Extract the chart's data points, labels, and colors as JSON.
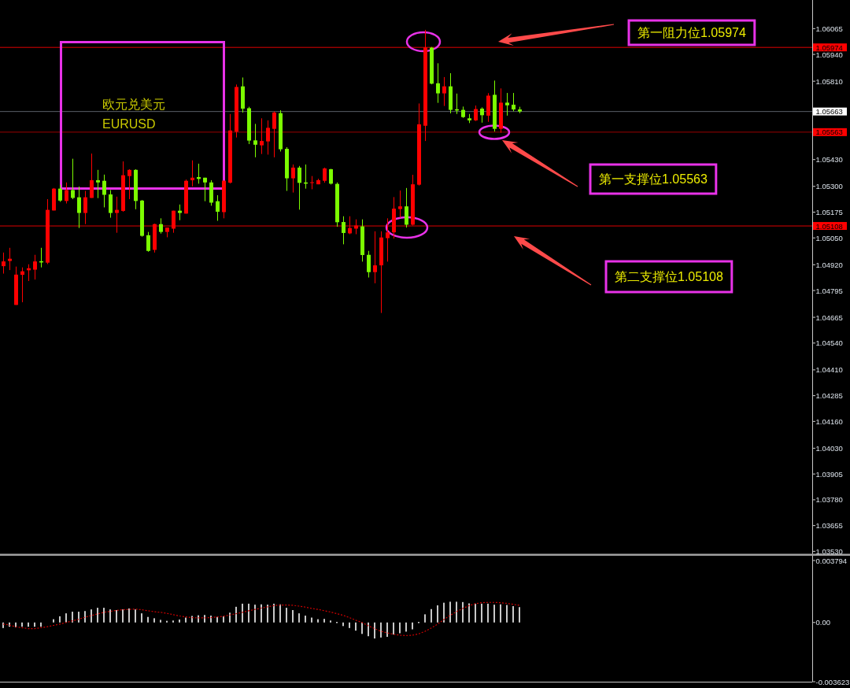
{
  "chart_data": [
    {
      "type": "candlestick",
      "title": "欧元兑美元",
      "subtitle": "EURUSD",
      "categories": [
        null,
        null,
        null,
        null,
        null,
        null,
        null,
        null,
        null,
        null,
        null,
        null,
        null,
        null,
        null,
        null,
        null,
        null,
        null,
        null,
        null,
        null,
        null,
        null,
        null,
        null,
        null,
        null,
        null,
        null,
        null,
        null,
        null,
        null,
        null,
        null,
        null,
        null,
        null,
        null,
        null,
        null,
        null,
        null,
        null,
        null,
        null,
        null,
        null,
        null,
        null,
        null,
        null,
        null,
        null,
        null,
        null,
        null,
        null,
        null,
        null,
        null,
        null,
        null,
        null,
        null,
        null,
        null,
        null,
        null,
        null,
        null,
        null,
        null,
        null,
        null,
        null,
        null,
        null,
        null,
        null,
        null,
        null,
        null,
        null,
        null,
        null,
        null,
        null,
        null,
        null,
        null,
        null,
        null,
        null,
        null,
        null,
        null,
        null,
        null,
        null,
        null,
        null,
        null,
        null,
        null,
        null,
        null,
        null,
        null,
        null,
        null,
        null,
        null,
        null,
        null,
        null,
        null,
        null,
        null,
        null,
        null,
        null,
        null,
        null,
        null,
        null,
        null,
        null
      ],
      "ohlc": [
        [
          1.04913,
          1.04979,
          1.04877,
          1.04936
        ],
        [
          1.04938,
          1.05002,
          1.04894,
          1.04949
        ],
        [
          1.04725,
          1.04911,
          1.04725,
          1.04872
        ],
        [
          1.04871,
          1.04907,
          1.04738,
          1.04888
        ],
        [
          1.04893,
          1.04922,
          1.04841,
          1.04903
        ],
        [
          1.04896,
          1.04968,
          1.04848,
          1.04936
        ],
        [
          1.04937,
          1.05002,
          1.04907,
          1.04931
        ],
        [
          1.0493,
          1.05238,
          1.04923,
          1.05186
        ],
        [
          1.05183,
          1.05292,
          1.05183,
          1.05289
        ],
        [
          1.05289,
          1.05308,
          1.05225,
          1.05231
        ],
        [
          1.05229,
          1.05319,
          1.05217,
          1.05282
        ],
        [
          1.05282,
          1.05434,
          1.05238,
          1.05244
        ],
        [
          1.05247,
          1.05299,
          1.05098,
          1.05171
        ],
        [
          1.05171,
          1.05278,
          1.05117,
          1.05247
        ],
        [
          1.05244,
          1.05459,
          1.05244,
          1.0533
        ],
        [
          1.0533,
          1.0538,
          1.05243,
          1.05319
        ],
        [
          1.05327,
          1.05357,
          1.05198,
          1.05259
        ],
        [
          1.05261,
          1.05282,
          1.05148,
          1.05171
        ],
        [
          1.05171,
          1.0525,
          1.05075,
          1.05186
        ],
        [
          1.05181,
          1.05421,
          1.05177,
          1.05354
        ],
        [
          1.0535,
          1.05383,
          1.05238,
          1.0538
        ],
        [
          1.0538,
          1.05383,
          1.05189,
          1.05229
        ],
        [
          1.05231,
          1.05234,
          1.05056,
          1.0506
        ],
        [
          1.05063,
          1.05079,
          1.04983,
          1.04987
        ],
        [
          1.04992,
          1.05119,
          1.04979,
          1.05117
        ],
        [
          1.05117,
          1.05145,
          1.05071,
          1.05079
        ],
        [
          1.05079,
          1.051,
          1.05053,
          1.051
        ],
        [
          1.05095,
          1.05182,
          1.05075,
          1.05182
        ],
        [
          1.05182,
          1.05212,
          1.05136,
          1.05171
        ],
        [
          1.05168,
          1.05333,
          1.05168,
          1.05327
        ],
        [
          1.0533,
          1.05426,
          1.053,
          1.05342
        ],
        [
          1.05345,
          1.0541,
          1.05313,
          1.05336
        ],
        [
          1.05342,
          1.05342,
          1.05228,
          1.05319
        ],
        [
          1.05319,
          1.0533,
          1.05206,
          1.05221
        ],
        [
          1.05228,
          1.05257,
          1.05133,
          1.05177
        ],
        [
          1.05175,
          1.0533,
          1.05145,
          1.05327
        ],
        [
          1.05318,
          1.05651,
          1.05314,
          1.05571
        ],
        [
          1.05565,
          1.05794,
          1.05537,
          1.05782
        ],
        [
          1.05785,
          1.05828,
          1.05658,
          1.05677
        ],
        [
          1.05679,
          1.05686,
          1.05505,
          1.05522
        ],
        [
          1.05523,
          1.05603,
          1.05441,
          1.05502
        ],
        [
          1.05499,
          1.0563,
          1.05457,
          1.0552
        ],
        [
          1.05518,
          1.0562,
          1.05454,
          1.05584
        ],
        [
          1.05579,
          1.05664,
          1.05441,
          1.05658
        ],
        [
          1.05655,
          1.05669,
          1.05469,
          1.0548
        ],
        [
          1.05482,
          1.0549,
          1.05278,
          1.05339
        ],
        [
          1.05339,
          1.05406,
          1.0527,
          1.05391
        ],
        [
          1.05391,
          1.05399,
          1.05187,
          1.05317
        ],
        [
          1.05319,
          1.05406,
          1.05289,
          1.05313
        ],
        [
          1.05317,
          1.0535,
          1.05286,
          1.0532
        ],
        [
          1.0531,
          1.05337,
          1.0531,
          1.0533
        ],
        [
          1.05327,
          1.05391,
          1.05318,
          1.05387
        ],
        [
          1.05383,
          1.05385,
          1.05309,
          1.05313
        ],
        [
          1.05312,
          1.05319,
          1.05104,
          1.05126
        ],
        [
          1.05127,
          1.05155,
          1.05019,
          1.05074
        ],
        [
          1.05072,
          1.05155,
          1.05068,
          1.05098
        ],
        [
          1.05095,
          1.0514,
          1.05068,
          1.0511
        ],
        [
          1.05106,
          1.0514,
          1.04935,
          1.04967
        ],
        [
          1.04968,
          1.04987,
          1.04858,
          1.04884
        ],
        [
          1.04884,
          1.05082,
          1.0483,
          1.04917
        ],
        [
          1.04917,
          1.05082,
          1.04686,
          1.05052
        ],
        [
          1.05049,
          1.05145,
          1.04935,
          1.05077
        ],
        [
          1.05077,
          1.05248,
          1.05047,
          1.05192
        ],
        [
          1.0519,
          1.0528,
          1.05148,
          1.05203
        ],
        [
          1.05203,
          1.05292,
          1.051,
          1.05114
        ],
        [
          1.05114,
          1.05356,
          1.0511,
          1.0531
        ],
        [
          1.05308,
          1.05702,
          1.05304,
          1.05601
        ],
        [
          1.05594,
          1.06059,
          1.0552,
          1.05974
        ],
        [
          1.05973,
          1.05976,
          1.05795,
          1.05798
        ],
        [
          1.058,
          1.05897,
          1.05705,
          1.05751
        ],
        [
          1.05751,
          1.0583,
          1.0569,
          1.05785
        ],
        [
          1.05785,
          1.05849,
          1.05654,
          1.05671
        ],
        [
          1.05674,
          1.0575,
          1.05651,
          1.05668
        ],
        [
          1.05671,
          1.05687,
          1.05632,
          1.05636
        ],
        [
          1.0563,
          1.05651,
          1.05607,
          1.0562
        ],
        [
          1.0562,
          1.05692,
          1.05617,
          1.05675
        ],
        [
          1.05677,
          1.05683,
          1.05609,
          1.05645
        ],
        [
          1.05643,
          1.05752,
          1.05613,
          1.0574
        ],
        [
          1.05744,
          1.05813,
          1.05566,
          1.05579
        ],
        [
          1.05579,
          1.05775,
          1.0556,
          1.05706
        ],
        [
          1.05706,
          1.05753,
          1.05643,
          1.05693
        ],
        [
          1.05696,
          1.05753,
          1.05664,
          1.05673
        ],
        [
          1.05673,
          1.05686,
          1.05655,
          1.05663
        ],
        null,
        null,
        null,
        null,
        null,
        null,
        null,
        null,
        null,
        null,
        null,
        null,
        null,
        null,
        null,
        null,
        null,
        null,
        null,
        null,
        null,
        null,
        null,
        null,
        null,
        null,
        null,
        null,
        null,
        null,
        null,
        null,
        null,
        null,
        null,
        null,
        null,
        null,
        null,
        null,
        null,
        null,
        null,
        null,
        null,
        null
      ],
      "colors": [
        "#ff0000",
        "#ff0000",
        "#ff0000",
        "#ff0000",
        "#ff0000",
        "#ff0000",
        "#7cfc00",
        "#ff0000",
        "#ff0000",
        "#7cfc00",
        "#ff0000",
        "#7cfc00",
        "#7cfc00",
        "#ff0000",
        "#ff0000",
        "#7cfc00",
        "#7cfc00",
        "#7cfc00",
        "#ff0000",
        "#ff0000",
        "#ff0000",
        "#7cfc00",
        "#7cfc00",
        "#7cfc00",
        "#ff0000",
        "#7cfc00",
        "#ff0000",
        "#ff0000",
        "#7cfc00",
        "#ff0000",
        "#ff0000",
        "#7cfc00",
        "#7cfc00",
        "#7cfc00",
        "#7cfc00",
        "#ff0000",
        "#ff0000",
        "#ff0000",
        "#7cfc00",
        "#7cfc00",
        "#7cfc00",
        "#ff0000",
        "#ff0000",
        "#ff0000",
        "#7cfc00",
        "#7cfc00",
        "#ff0000",
        "#7cfc00",
        "#7cfc00",
        "#ff0000",
        "#ff0000",
        "#ff0000",
        "#7cfc00",
        "#7cfc00",
        "#7cfc00",
        "#ff0000",
        "#ff0000",
        "#7cfc00",
        "#7cfc00",
        "#ff0000",
        "#ff0000",
        "#ff0000",
        "#ff0000",
        "#ff0000",
        "#7cfc00",
        "#ff0000",
        "#ff0000",
        "#ff0000",
        "#7cfc00",
        "#7cfc00",
        "#ff0000",
        "#7cfc00",
        "#7cfc00",
        "#7cfc00",
        "#7cfc00",
        "#ff0000",
        "#7cfc00",
        "#ff0000",
        "#7cfc00",
        "#ff0000",
        "#7cfc00",
        "#7cfc00",
        "#7cfc00",
        null,
        null,
        null,
        null,
        null,
        null,
        null,
        null,
        null,
        null,
        null,
        null,
        null,
        null,
        null,
        null,
        null,
        null,
        null,
        null,
        null,
        null,
        null,
        null,
        null,
        null,
        null,
        null,
        null,
        null,
        null,
        null,
        null,
        null,
        null,
        null,
        null,
        null,
        null,
        null,
        null,
        null,
        null,
        null,
        null,
        null
      ],
      "ylim": [
        1.0352,
        1.062
      ],
      "yticks": [
        1.06065,
        {
          "value": 1.0594,
          "label": "1.05940"
        },
        {
          "value": 1.0581,
          "label": "1.05810"
        },
        {
          "value": 1.0543,
          "label": "1.05430"
        },
        {
          "value": 1.053,
          "label": "1.05300"
        },
        1.05175,
        {
          "value": 1.0505,
          "label": "1.05050"
        },
        {
          "value": 1.0492,
          "label": "1.04920"
        },
        1.04795,
        1.04665,
        {
          "value": 1.0454,
          "label": "1.04540"
        },
        {
          "value": 1.0441,
          "label": "1.04410"
        },
        1.04285,
        {
          "value": 1.0416,
          "label": "1.04160"
        },
        {
          "value": 1.0403,
          "label": "1.04030"
        },
        1.03905,
        {
          "value": 1.0378,
          "label": "1.03780"
        },
        1.03655,
        {
          "value": 1.0353,
          "label": "1.03530"
        }
      ],
      "ref_lines": [
        {
          "axis": "y",
          "value": 1.05974,
          "label": "1.05974",
          "color": "#dd0000"
        },
        {
          "axis": "y",
          "value": 1.05663,
          "label": "1.05663",
          "color": "#5b6169"
        },
        {
          "axis": "y",
          "value": 1.05563,
          "label": "1.05563",
          "color": "#9a0000"
        },
        {
          "axis": "y",
          "value": 1.05108,
          "label": "1.05108",
          "color": "#dd0000"
        }
      ],
      "annotations": [
        "第一阻力位1.05974",
        "第一支撑位1.05563",
        "第二支撑位1.05108"
      ],
      "tick_labels": "y"
    },
    {
      "type": "bar",
      "categories": [
        null,
        null,
        null,
        null,
        null,
        null,
        null,
        null,
        null,
        null,
        null,
        null,
        null,
        null,
        null,
        null,
        null,
        null,
        null,
        null,
        null,
        null,
        null,
        null,
        null,
        null,
        null,
        null,
        null,
        null,
        null,
        null,
        null,
        null,
        null,
        null,
        null,
        null,
        null,
        null,
        null,
        null,
        null,
        null,
        null,
        null,
        null,
        null,
        null,
        null,
        null,
        null,
        null,
        null,
        null,
        null,
        null,
        null,
        null,
        null,
        null,
        null,
        null,
        null,
        null,
        null,
        null,
        null,
        null,
        null,
        null,
        null,
        null,
        null,
        null,
        null,
        null,
        null,
        null,
        null,
        null,
        null,
        null,
        null,
        null,
        null,
        null,
        null,
        null,
        null,
        null,
        null,
        null,
        null,
        null,
        null,
        null,
        null,
        null,
        null,
        null,
        null,
        null,
        null,
        null,
        null,
        null,
        null,
        null,
        null,
        null,
        null,
        null,
        null,
        null,
        null,
        null,
        null,
        null,
        null,
        null,
        null,
        null,
        null,
        null,
        null,
        null,
        null,
        null
      ],
      "series": [
        {
          "type": "bar",
          "color": "#c8c8c8",
          "values": [
            -0.00034,
            -0.00026,
            -0.0003,
            -0.00026,
            -0.00026,
            -0.00026,
            -0.00026,
            null,
            0.0002,
            0.00038,
            0.00056,
            0.00066,
            0.00066,
            0.0007,
            0.0008,
            0.0009,
            0.0009,
            0.0008,
            0.00076,
            0.0008,
            0.00086,
            0.0008,
            0.00056,
            0.00034,
            0.00026,
            0.00016,
            0.0001,
            0.00012,
            0.00018,
            0.0003,
            0.0004,
            0.00044,
            0.00046,
            0.00042,
            0.00034,
            0.00038,
            0.0006,
            0.00096,
            0.00115,
            0.00115,
            0.00109,
            0.00111,
            0.00109,
            0.00115,
            0.00111,
            0.0009,
            0.00076,
            0.00056,
            0.00042,
            0.0003,
            0.0002,
            0.00022,
            0.00012,
            0,
            -0.00022,
            -0.00034,
            -0.0005,
            -0.0007,
            -0.00084,
            -0.00098,
            -0.00092,
            -0.00088,
            -0.00074,
            -0.00066,
            -0.00056,
            -0.00042,
            0,
            0.0005,
            0.00082,
            0.00105,
            0.00121,
            0.00127,
            0.00127,
            0.00125,
            0.00117,
            0.00115,
            0.00115,
            0.00115,
            0.00109,
            0.00111,
            0.00107,
            0.001,
            0.00094,
            null,
            null,
            null,
            null,
            null,
            null,
            null,
            null,
            null,
            null,
            null,
            null,
            null,
            null,
            null,
            null,
            null,
            null,
            null,
            null,
            null,
            null,
            null,
            null,
            null,
            null,
            null,
            null,
            null,
            null,
            null,
            null,
            null,
            null,
            null,
            null,
            null,
            null,
            null,
            null,
            null,
            null,
            null,
            null,
            null,
            null
          ]
        },
        {
          "type": "line",
          "color": "#d00000",
          "line_style": "dotted",
          "values": [
            -0.0001,
            -0.00016,
            -0.00026,
            -0.00032,
            -0.00038,
            -0.00038,
            -0.00032,
            -0.00026,
            -0.00018,
            -0.0001,
            0,
            0.0001,
            0.0002,
            0.00032,
            0.00042,
            0.00052,
            0.00062,
            0.00068,
            0.00074,
            0.00078,
            0.0008,
            0.00082,
            0.00078,
            0.00072,
            0.00066,
            0.00062,
            0.00056,
            0.00048,
            0.0004,
            0.00034,
            0.0003,
            0.00028,
            0.00028,
            0.0003,
            0.00034,
            0.00038,
            0.00046,
            0.00054,
            0.00062,
            0.00072,
            0.0008,
            0.00088,
            0.00096,
            0.00103,
            0.00107,
            0.00107,
            0.00105,
            0.001,
            0.00094,
            0.00086,
            0.0008,
            0.00072,
            0.00064,
            0.00054,
            0.00044,
            0.0003,
            0.00014,
            0,
            -0.0002,
            -0.00038,
            -0.00054,
            -0.00064,
            -0.00072,
            -0.00078,
            -0.0008,
            -0.00078,
            -0.0007,
            -0.00054,
            -0.00034,
            -0.0001,
            0.00018,
            0.00044,
            0.00066,
            0.00086,
            0.00103,
            0.00115,
            0.00121,
            0.00123,
            0.00123,
            0.00121,
            0.00117,
            0.00111,
            0.00105,
            null,
            null,
            null,
            null,
            null,
            null,
            null,
            null,
            null,
            null,
            null,
            null,
            null,
            null,
            null,
            null,
            null,
            null,
            null,
            null,
            null,
            null,
            null,
            null,
            null,
            null,
            null,
            null,
            null,
            null,
            null,
            null,
            null,
            null,
            null,
            null,
            null,
            null,
            null,
            null,
            null,
            null,
            null,
            null,
            null,
            null
          ]
        }
      ],
      "ylim": [
        -0.003623,
        0.003794
      ],
      "yticks": [
        0.003794,
        {
          "value": 0,
          "label": "0.00"
        },
        -0.003623
      ],
      "tick_labels": "y"
    }
  ]
}
